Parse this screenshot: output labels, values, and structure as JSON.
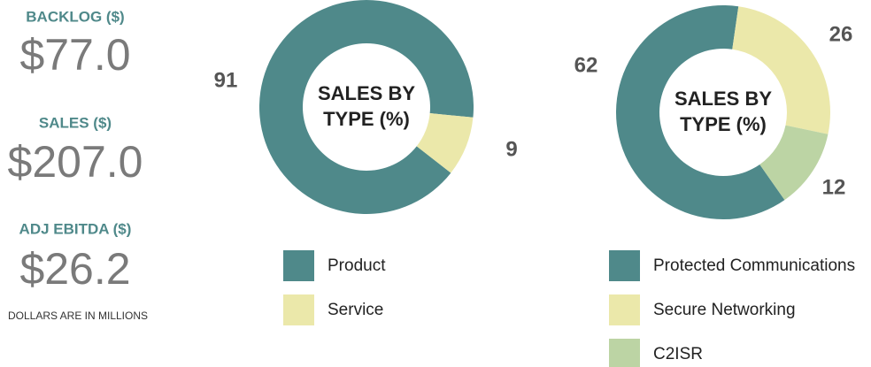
{
  "kpis": [
    {
      "label": "BACKLOG ($)",
      "value": "$77.0"
    },
    {
      "label": "SALES ($)",
      "value": "$207.0"
    },
    {
      "label": "ADJ EBITDA ($)",
      "value": "$26.2"
    }
  ],
  "note": "DOLLARS ARE IN MILLIONS",
  "chart_data": [
    {
      "type": "donut",
      "title": "SALES BY TYPE (%)",
      "categories": [
        "Product",
        "Service"
      ],
      "values": [
        91,
        9
      ],
      "colors": [
        "#4f898a",
        "#ebe8aa"
      ]
    },
    {
      "type": "donut",
      "title": "SALES BY TYPE (%)",
      "categories": [
        "Protected Communications",
        "Secure Networking",
        "C2ISR"
      ],
      "values": [
        62,
        26,
        12
      ],
      "colors": [
        "#4f898a",
        "#ebe8aa",
        "#bcd4a4"
      ]
    }
  ]
}
